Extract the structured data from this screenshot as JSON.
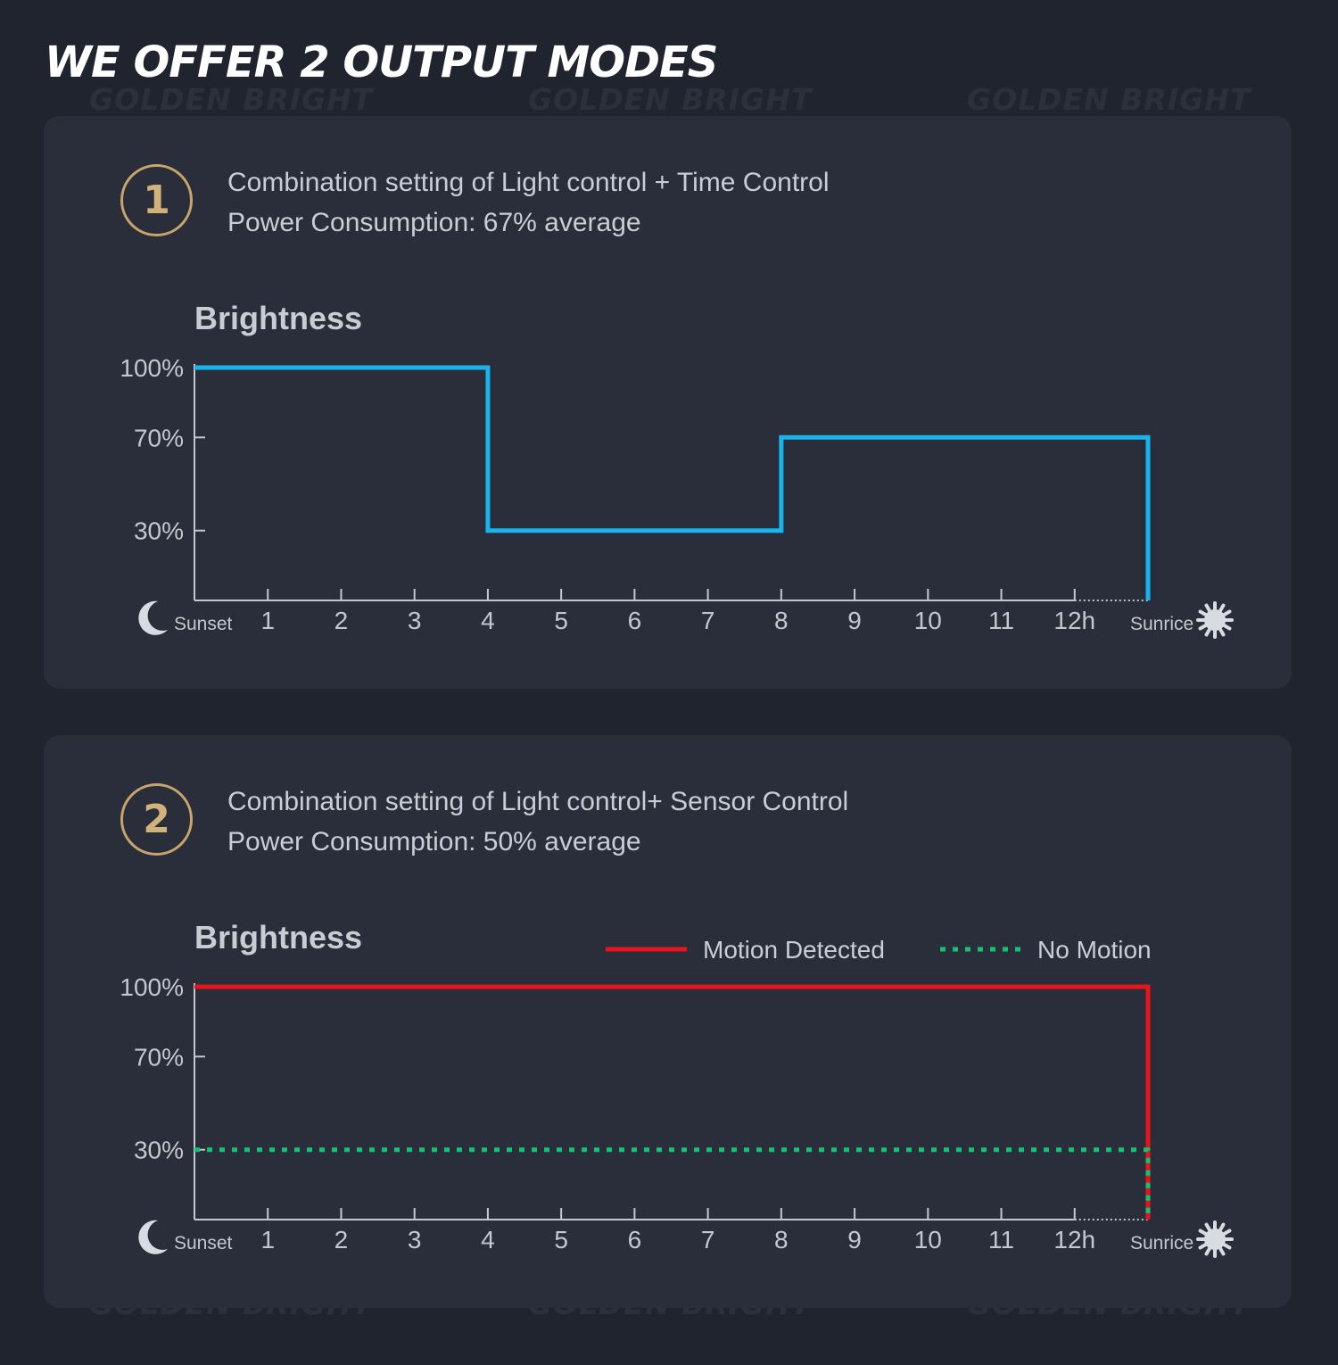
{
  "page_title": "WE OFFER 2 OUTPUT MODES",
  "watermark_text": "GOLDEN BRIGHT",
  "modes": [
    {
      "number": "1",
      "line1": "Combination setting of Light control + Time Control",
      "line2": "Power Consumption: 67% average"
    },
    {
      "number": "2",
      "line1": "Combination setting of Light control+ Sensor Control",
      "line2": "Power Consumption: 50% average"
    }
  ],
  "colors": {
    "background": "#20242f",
    "panel": "#292e3a",
    "accent_gold": "#c9a56b",
    "time_control_line": "#1ab4ec",
    "motion_detected": "#e8141b",
    "no_motion": "#12c472",
    "axis": "#c3c7cf"
  },
  "icons": {
    "start": "moon-icon",
    "end": "sun-icon"
  },
  "chart_data": [
    {
      "type": "line",
      "title": "Brightness",
      "xlabel": "",
      "ylabel": "Brightness",
      "start_label": "Sunset",
      "end_label": "Sunrice",
      "x_ticks": [
        "1",
        "2",
        "3",
        "4",
        "5",
        "6",
        "7",
        "8",
        "9",
        "10",
        "11",
        "12h"
      ],
      "y_ticks": [
        {
          "label": "100%",
          "value": 100
        },
        {
          "label": "70%",
          "value": 70
        },
        {
          "label": "30%",
          "value": 30
        }
      ],
      "xlim": [
        0,
        13
      ],
      "ylim": [
        0,
        100
      ],
      "legend": [],
      "series": [
        {
          "style": "solid",
          "color": "#1ab4ec",
          "points": [
            [
              0,
              100
            ],
            [
              4,
              100
            ],
            [
              4,
              30
            ],
            [
              8,
              30
            ],
            [
              8,
              70
            ],
            [
              13,
              70
            ],
            [
              13,
              0
            ]
          ]
        }
      ]
    },
    {
      "type": "line",
      "title": "Brightness",
      "xlabel": "",
      "ylabel": "Brightness",
      "start_label": "Sunset",
      "end_label": "Sunrice",
      "x_ticks": [
        "1",
        "2",
        "3",
        "4",
        "5",
        "6",
        "7",
        "8",
        "9",
        "10",
        "11",
        "12h"
      ],
      "y_ticks": [
        {
          "label": "100%",
          "value": 100
        },
        {
          "label": "70%",
          "value": 70
        },
        {
          "label": "30%",
          "value": 30
        }
      ],
      "xlim": [
        0,
        13
      ],
      "ylim": [
        0,
        100
      ],
      "legend": [
        {
          "label": "Motion Detected",
          "style": "solid",
          "color": "#e8141b"
        },
        {
          "label": "No Motion",
          "style": "dotted",
          "color": "#12c472"
        }
      ],
      "series": [
        {
          "name": "Motion Detected",
          "style": "solid",
          "color": "#e8141b",
          "points": [
            [
              0,
              100
            ],
            [
              13,
              100
            ],
            [
              13,
              0
            ]
          ]
        },
        {
          "name": "No Motion",
          "style": "dotted",
          "color": "#12c472",
          "points": [
            [
              0,
              30
            ],
            [
              13,
              30
            ],
            [
              13,
              0
            ]
          ]
        }
      ]
    }
  ]
}
